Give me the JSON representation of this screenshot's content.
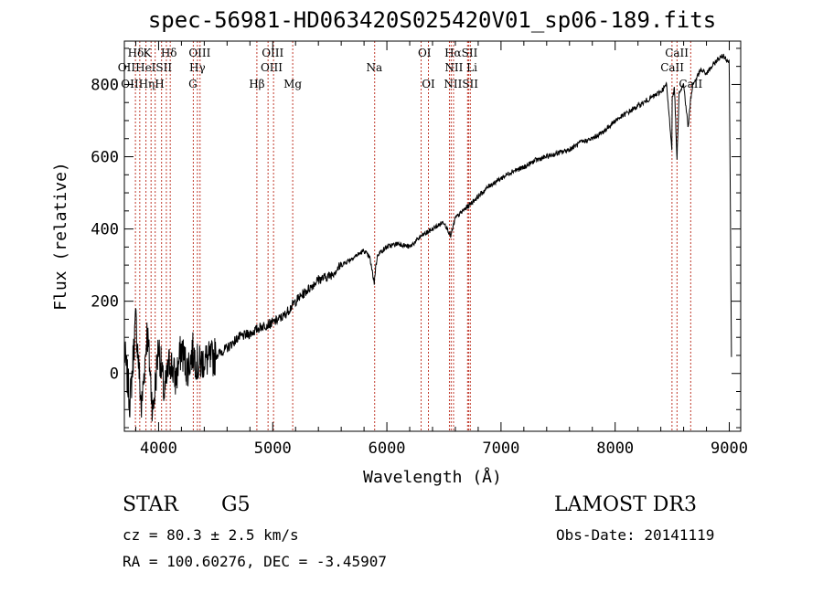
{
  "chart_data": {
    "type": "line",
    "title": "spec-56981-HD063420S025420V01_sp06-189.fits",
    "xlabel": "Wavelength (Å)",
    "ylabel": "Flux (relative)",
    "xlim": [
      3700,
      9100
    ],
    "ylim": [
      -160,
      920
    ],
    "xticks": [
      4000,
      5000,
      6000,
      7000,
      8000,
      9000
    ],
    "yticks": [
      0,
      200,
      400,
      600,
      800
    ],
    "series": [
      {
        "name": "spectrum",
        "x": [
          3700,
          3750,
          3800,
          3850,
          3900,
          3950,
          4000,
          4050,
          4100,
          4150,
          4200,
          4250,
          4300,
          4350,
          4400,
          4450,
          4500,
          4600,
          4700,
          4800,
          4900,
          5000,
          5100,
          5200,
          5300,
          5400,
          5500,
          5600,
          5700,
          5800,
          5850,
          5890,
          5900,
          5920,
          6000,
          6100,
          6200,
          6300,
          6400,
          6500,
          6560,
          6600,
          6700,
          6800,
          6900,
          7000,
          7100,
          7200,
          7300,
          7400,
          7500,
          7600,
          7700,
          7800,
          7900,
          8000,
          8100,
          8200,
          8300,
          8400,
          8450,
          8498,
          8500,
          8520,
          8542,
          8560,
          8600,
          8640,
          8662,
          8680,
          8700,
          8750,
          8800,
          8850,
          8900,
          8950,
          9000,
          9020
        ],
        "y": [
          60,
          -80,
          150,
          -100,
          120,
          -110,
          80,
          -60,
          40,
          -20,
          70,
          10,
          60,
          20,
          40,
          35,
          50,
          70,
          100,
          110,
          130,
          140,
          160,
          200,
          230,
          260,
          270,
          300,
          320,
          340,
          320,
          250,
          290,
          330,
          350,
          360,
          350,
          380,
          400,
          420,
          380,
          430,
          460,
          490,
          520,
          540,
          560,
          570,
          590,
          600,
          610,
          620,
          640,
          650,
          670,
          700,
          720,
          740,
          760,
          780,
          800,
          620,
          760,
          790,
          590,
          780,
          800,
          680,
          760,
          800,
          810,
          840,
          830,
          850,
          870,
          880,
          860,
          10
        ]
      }
    ],
    "lines": [
      {
        "wave": 3797,
        "upper": "",
        "lower": "OII"
      },
      {
        "wave": 3835,
        "upper": "",
        "lower": "OII"
      },
      {
        "wave": 3889,
        "upper": "",
        "lower": "He"
      },
      {
        "wave": 3934,
        "upper": "K",
        "lower": ""
      },
      {
        "wave": 3970,
        "upper": "Hε",
        "lower": "H"
      },
      {
        "wave": 4026,
        "upper": "",
        "lower": "HeI"
      },
      {
        "wave": 4068,
        "upper": "",
        "lower": "SII"
      },
      {
        "wave": 4102,
        "upper": "Hδ",
        "lower": ""
      },
      {
        "wave": 4304,
        "upper": "",
        "lower": "G"
      },
      {
        "wave": 4340,
        "upper": "Hγ",
        "lower": ""
      },
      {
        "wave": 4363,
        "upper": "OIII",
        "lower": ""
      },
      {
        "wave": 4861,
        "upper": "",
        "lower": "Hβ"
      },
      {
        "wave": 4959,
        "upper": "OIII",
        "lower": ""
      },
      {
        "wave": 5007,
        "upper": "OIII",
        "lower": ""
      },
      {
        "wave": 5175,
        "upper": "",
        "lower": "Mg"
      },
      {
        "wave": 5893,
        "upper": "",
        "lower": "Na"
      },
      {
        "wave": 6300,
        "upper": "OI",
        "lower": ""
      },
      {
        "wave": 6364,
        "upper": "",
        "lower": "OI"
      },
      {
        "wave": 6548,
        "upper": "NII",
        "lower": ""
      },
      {
        "wave": 6563,
        "upper": "Hα",
        "lower": ""
      },
      {
        "wave": 6584,
        "upper": "NII",
        "lower": ""
      },
      {
        "wave": 6707,
        "upper": "Li",
        "lower": ""
      },
      {
        "wave": 6717,
        "upper": "SII",
        "lower": ""
      },
      {
        "wave": 6731,
        "upper": "SII",
        "lower": ""
      },
      {
        "wave": 8498,
        "upper": "CaII",
        "lower": ""
      },
      {
        "wave": 8542,
        "upper": "CaII",
        "lower": ""
      },
      {
        "wave": 8662,
        "upper": "CaII",
        "lower": ""
      }
    ],
    "labels": [
      {
        "text": "Hδ",
        "wave": 3800,
        "row": 0
      },
      {
        "text": "K",
        "wave": 3900,
        "row": 0
      },
      {
        "text": "Hδ",
        "wave": 4090,
        "row": 0
      },
      {
        "text": "OIII",
        "wave": 4360,
        "row": 0
      },
      {
        "text": "OIII",
        "wave": 5000,
        "row": 0
      },
      {
        "text": "OI",
        "wave": 6330,
        "row": 0
      },
      {
        "text": "HαSII",
        "wave": 6650,
        "row": 0
      },
      {
        "text": "CaII",
        "wave": 8540,
        "row": 0
      },
      {
        "text": "OIIHeISII",
        "wave": 3880,
        "row": 1
      },
      {
        "text": "Hγ",
        "wave": 4340,
        "row": 1
      },
      {
        "text": "OIII",
        "wave": 4990,
        "row": 1
      },
      {
        "text": "Na",
        "wave": 5890,
        "row": 1
      },
      {
        "text": "NII Li",
        "wave": 6650,
        "row": 1
      },
      {
        "text": "CaII",
        "wave": 8500,
        "row": 1
      },
      {
        "text": "OIIHηH",
        "wave": 3860,
        "row": 2
      },
      {
        "text": "G",
        "wave": 4300,
        "row": 2
      },
      {
        "text": "Hβ",
        "wave": 4861,
        "row": 2
      },
      {
        "text": "Mg",
        "wave": 5175,
        "row": 2
      },
      {
        "text": "OI",
        "wave": 6364,
        "row": 2
      },
      {
        "text": "NIISII",
        "wave": 6650,
        "row": 2
      },
      {
        "text": "CaII",
        "wave": 8662,
        "row": 2
      }
    ]
  },
  "info": {
    "object_type": "STAR",
    "subclass": "G5",
    "survey": "LAMOST DR3",
    "cz": "cz = 80.3 ± 2.5 km/s",
    "obs_date": "Obs-Date: 20141119",
    "coords": "RA = 100.60276, DEC =  -3.45907"
  },
  "colors": {
    "line_marker": "#c0392b",
    "axes": "#000000",
    "spectrum": "#000000"
  }
}
